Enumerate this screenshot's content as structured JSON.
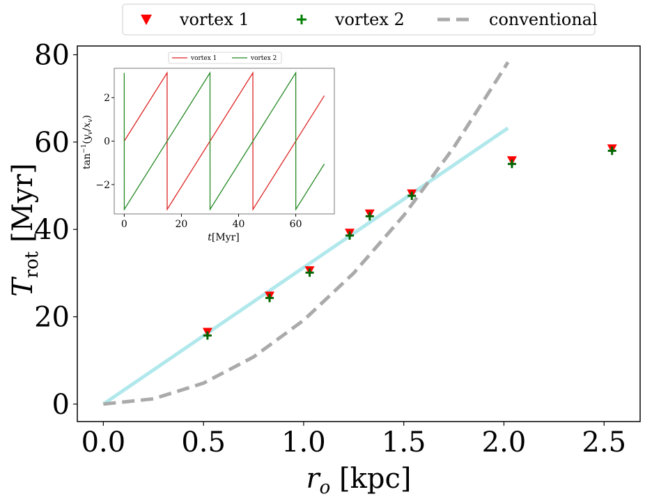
{
  "chart_data": [
    {
      "type": "scatter",
      "xlabel": "r_o [kpc]",
      "ylabel": "T_rot [Myr]",
      "xlim": [
        -0.13,
        2.68
      ],
      "ylim": [
        -4,
        82
      ],
      "xticks": [
        "0.0",
        "0.5",
        "1.0",
        "1.5",
        "2.0",
        "2.5"
      ],
      "yticks": [
        "0",
        "20",
        "40",
        "60",
        "80"
      ],
      "legend_position": "top, outside, horizontal",
      "series": [
        {
          "name": "vortex 1",
          "marker": "triangle-down",
          "color": "#ff0000",
          "x": [
            0.52,
            0.83,
            1.03,
            1.23,
            1.33,
            1.54,
            2.04,
            2.54
          ],
          "y": [
            16.5,
            24.8,
            30.6,
            39.2,
            43.6,
            48.2,
            55.8,
            58.5
          ]
        },
        {
          "name": "vortex 2",
          "marker": "plus",
          "color": "#008000",
          "x": [
            0.52,
            0.83,
            1.03,
            1.23,
            1.33,
            1.54,
            2.04,
            2.54
          ],
          "y": [
            15.7,
            24.3,
            30.1,
            38.6,
            43.0,
            47.7,
            55.0,
            58.0
          ]
        },
        {
          "name": "conventional",
          "style": "dashed",
          "color": "#aaaaaa",
          "x": [
            0,
            0.25,
            0.5,
            0.75,
            1.0,
            1.25,
            1.5,
            1.75,
            2.0,
            2.02
          ],
          "y": [
            0,
            1.2,
            4.8,
            10.8,
            19.2,
            30.0,
            43.2,
            58.8,
            76.8,
            78.3
          ]
        },
        {
          "style": "solid",
          "color": "#b0e8ec",
          "x": [
            0,
            2.02
          ],
          "y": [
            0,
            63.2
          ]
        }
      ]
    },
    {
      "type": "line",
      "position": "inset, upper-left",
      "xlabel": "t[Myr]",
      "ylabel": "tan^-1(y_v/x_v)",
      "xlim": [
        -3.5,
        73.5
      ],
      "ylim": [
        -3.35,
        3.35
      ],
      "xticks": [
        "0",
        "20",
        "40",
        "60"
      ],
      "yticks": [
        "−2",
        "0",
        "2"
      ],
      "legend_position": "top",
      "series": [
        {
          "name": "vortex 1",
          "color": "#dd2222",
          "x": [
            0,
            15,
            15.02,
            45,
            45.02,
            70
          ],
          "y": [
            0.0,
            3.1416,
            -3.1416,
            3.1416,
            -3.1416,
            2.09
          ]
        },
        {
          "name": "vortex 2",
          "color": "#228822",
          "x": [
            0,
            0.02,
            30,
            30.02,
            60,
            60.02,
            70
          ],
          "y": [
            3.1416,
            -3.1416,
            3.1416,
            -3.1416,
            3.1416,
            -3.1416,
            -1.05
          ]
        }
      ]
    }
  ]
}
